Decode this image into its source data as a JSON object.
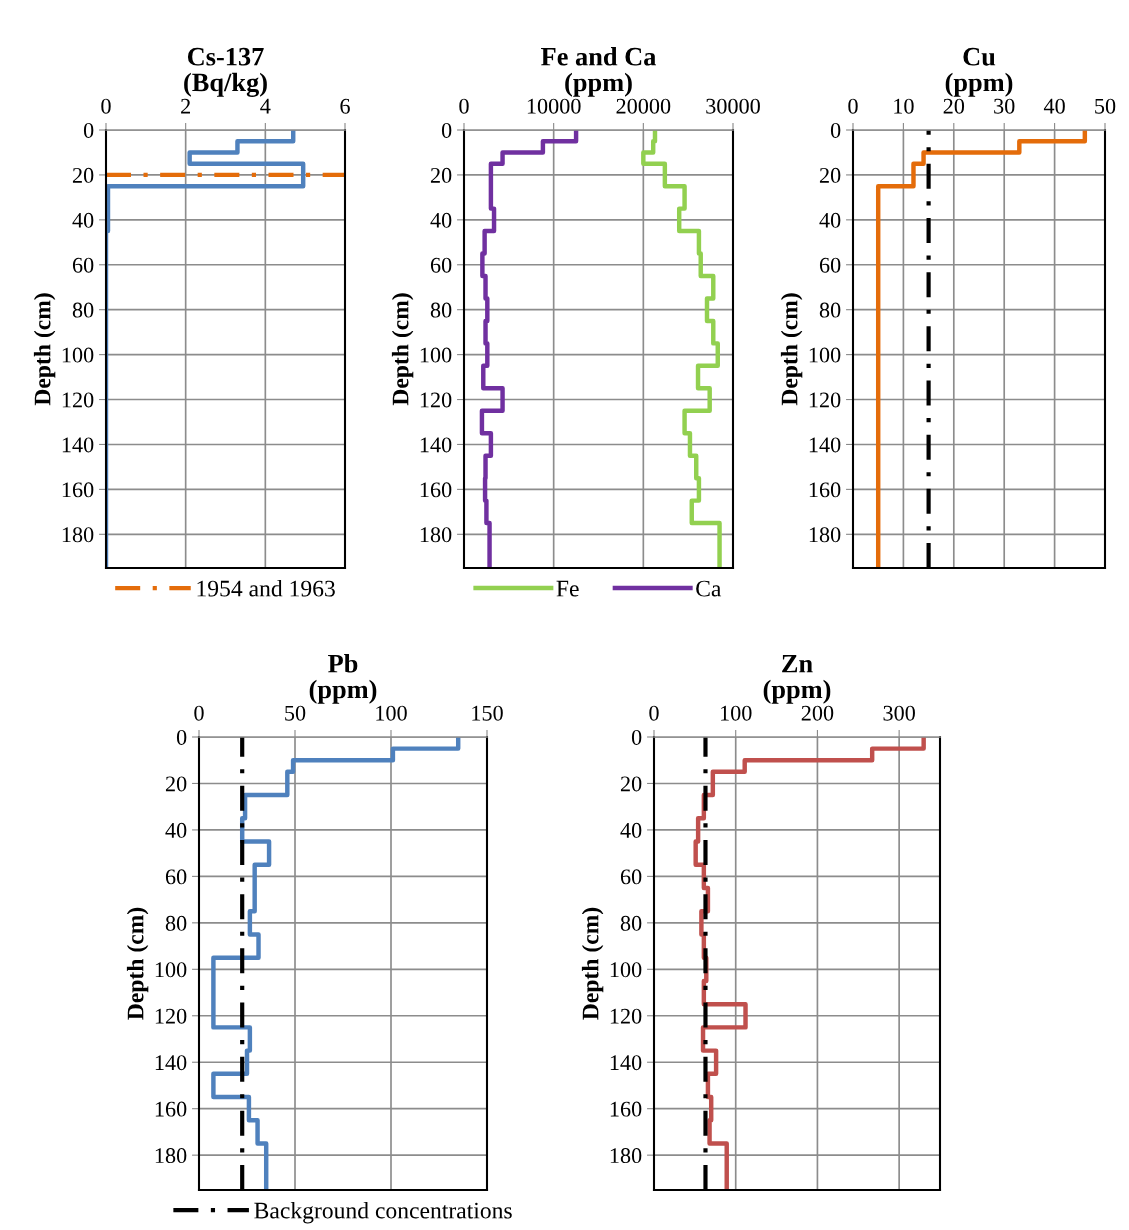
{
  "chart_data": [
    {
      "type": "line",
      "title": "Cs-137\n(Bq/kg)",
      "ylabel": "Depth (cm)",
      "xlim": [
        0,
        6
      ],
      "xticks": [
        0,
        2,
        4,
        6
      ],
      "ylim": [
        195,
        0
      ],
      "yticks": [
        0,
        20,
        40,
        60,
        80,
        100,
        120,
        140,
        160,
        180
      ],
      "grid": true,
      "legend": "bottom",
      "series": [
        {
          "color": "#4f81bd",
          "x": [
            4.7,
            4.7,
            3.3,
            3.3,
            2.1,
            2.1,
            4.95,
            4.95,
            0.05,
            0.05,
            0,
            0
          ],
          "values": [
            0,
            5,
            5,
            10,
            10,
            15,
            15,
            25,
            25,
            45,
            45,
            195
          ]
        }
      ],
      "ref_lines": [
        {
          "axis": "y",
          "value": 20,
          "label": "1954 and 1963",
          "color": "#e46c0a",
          "line_style": "dashdot"
        }
      ]
    },
    {
      "type": "line",
      "title": "Fe and Ca\n(ppm)",
      "ylabel": "Depth (cm)",
      "xlim": [
        0,
        30000
      ],
      "xticks": [
        0,
        10000,
        20000,
        30000
      ],
      "ylim": [
        195,
        0
      ],
      "yticks": [
        0,
        20,
        40,
        60,
        80,
        100,
        120,
        140,
        160,
        180
      ],
      "grid": true,
      "legend": "bottom",
      "series": [
        {
          "name": "Fe",
          "color": "#92d050",
          "x": [
            21300,
            21300,
            21100,
            21100,
            20000,
            20000,
            22400,
            22400,
            24600,
            24600,
            24000,
            24000,
            26200,
            26200,
            26400,
            26400,
            27800,
            27800,
            27100,
            27100,
            27800,
            27800,
            28300,
            28300,
            26100,
            26100,
            27400,
            27400,
            24600,
            24600,
            25200,
            25200,
            25900,
            25900,
            26200,
            26200,
            25400,
            25400,
            28500,
            28500
          ],
          "values": [
            0,
            5,
            5,
            10,
            10,
            15,
            15,
            25,
            25,
            35,
            35,
            45,
            45,
            55,
            55,
            65,
            65,
            75,
            75,
            85,
            85,
            95,
            95,
            105,
            105,
            115,
            115,
            125,
            125,
            135,
            135,
            145,
            145,
            155,
            155,
            165,
            165,
            175,
            175,
            195
          ]
        },
        {
          "name": "Ca",
          "color": "#7030a0",
          "x": [
            12500,
            12500,
            8800,
            8800,
            4300,
            4300,
            3000,
            3000,
            3350,
            3350,
            2300,
            2300,
            2050,
            2050,
            2400,
            2400,
            2600,
            2600,
            2400,
            2400,
            2600,
            2600,
            2150,
            2150,
            4300,
            4300,
            2000,
            2000,
            3000,
            3000,
            2400,
            2400,
            2350,
            2350,
            2500,
            2500,
            2850,
            2850
          ],
          "values": [
            0,
            5,
            5,
            10,
            10,
            15,
            15,
            35,
            35,
            45,
            45,
            55,
            55,
            65,
            65,
            75,
            75,
            85,
            85,
            95,
            95,
            105,
            105,
            115,
            115,
            125,
            125,
            135,
            135,
            145,
            145,
            155,
            155,
            165,
            165,
            175,
            175,
            195
          ]
        }
      ]
    },
    {
      "type": "line",
      "title": "Cu\n(ppm)",
      "ylabel": "Depth (cm)",
      "xlim": [
        0,
        50
      ],
      "xticks": [
        0,
        10,
        20,
        30,
        40,
        50
      ],
      "ylim": [
        195,
        0
      ],
      "yticks": [
        0,
        20,
        40,
        60,
        80,
        100,
        120,
        140,
        160,
        180
      ],
      "grid": true,
      "series": [
        {
          "color": "#e46c0a",
          "x": [
            46,
            46,
            33,
            33,
            14,
            14,
            12,
            12,
            5,
            5
          ],
          "values": [
            0,
            5,
            5,
            10,
            10,
            15,
            15,
            25,
            25,
            195
          ]
        }
      ],
      "ref_lines": [
        {
          "axis": "x",
          "value": 15,
          "color": "#000000",
          "line_style": "dashdot"
        }
      ]
    },
    {
      "type": "line",
      "title": "Pb\n(ppm)",
      "ylabel": "Depth (cm)",
      "xlim": [
        0,
        150
      ],
      "xticks": [
        0,
        50,
        100,
        150
      ],
      "ylim": [
        195,
        0
      ],
      "yticks": [
        0,
        20,
        40,
        60,
        80,
        100,
        120,
        140,
        160,
        180
      ],
      "grid": true,
      "legend": "bottom",
      "series": [
        {
          "color": "#4f81bd",
          "x": [
            135,
            135,
            101,
            101,
            49,
            49,
            46,
            46,
            24,
            24,
            22.5,
            22.5,
            36.5,
            36.5,
            29,
            29,
            26.5,
            26.5,
            31,
            31,
            7.5,
            7.5,
            26.5,
            26.5,
            25,
            25,
            7.5,
            7.5,
            26,
            26,
            30.5,
            30.5,
            35,
            35
          ],
          "values": [
            0,
            5,
            5,
            10,
            10,
            15,
            15,
            25,
            25,
            35,
            35,
            45,
            45,
            55,
            55,
            75,
            75,
            85,
            85,
            95,
            95,
            125,
            125,
            135,
            135,
            145,
            145,
            155,
            155,
            165,
            165,
            175,
            175,
            195
          ]
        }
      ],
      "ref_lines": [
        {
          "axis": "x",
          "value": 22.5,
          "label": "Background concentrations",
          "color": "#000000",
          "line_style": "dashdot"
        }
      ]
    },
    {
      "type": "line",
      "title": "Zn\n(ppm)",
      "ylabel": "Depth (cm)",
      "xlim": [
        0,
        350
      ],
      "xticks": [
        0,
        100,
        200,
        300
      ],
      "ylim": [
        195,
        0
      ],
      "yticks": [
        0,
        20,
        40,
        60,
        80,
        100,
        120,
        140,
        160,
        180
      ],
      "grid": true,
      "series": [
        {
          "color": "#c0504d",
          "x": [
            330,
            330,
            267,
            267,
            111,
            111,
            72,
            72,
            61,
            61,
            54,
            54,
            51,
            51,
            61,
            61,
            66,
            66,
            58,
            58,
            61,
            61,
            64,
            64,
            61,
            61,
            112,
            112,
            60,
            60,
            76,
            76,
            66,
            66,
            70,
            70,
            68,
            68,
            89,
            89
          ],
          "values": [
            0,
            5,
            5,
            10,
            10,
            15,
            15,
            25,
            25,
            35,
            35,
            45,
            45,
            55,
            55,
            65,
            65,
            75,
            75,
            85,
            85,
            95,
            95,
            105,
            105,
            115,
            115,
            125,
            125,
            135,
            135,
            145,
            145,
            155,
            155,
            165,
            165,
            175,
            175,
            195
          ]
        }
      ],
      "ref_lines": [
        {
          "axis": "x",
          "value": 63,
          "color": "#000000",
          "line_style": "dashdot"
        }
      ]
    }
  ]
}
